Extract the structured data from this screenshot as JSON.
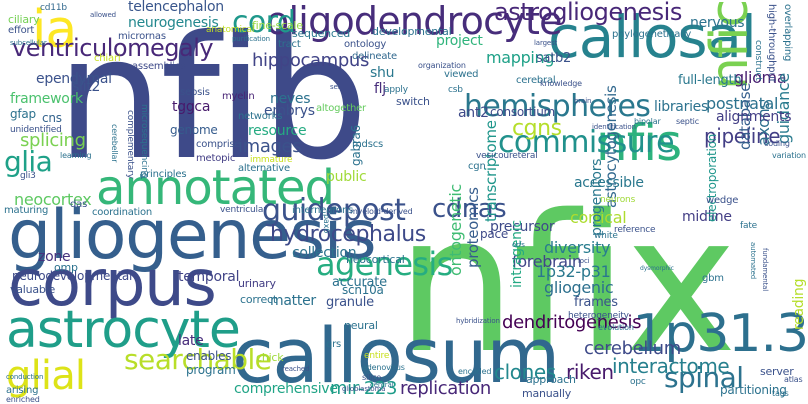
{
  "words": [
    {
      "text": "nfix",
      "color": "#5ec962"
    },
    {
      "text": "nfib",
      "color": "#3e4a89"
    },
    {
      "text": "callosum",
      "color": "#31688e"
    },
    {
      "text": "gliogenesis",
      "color": "#355f8d"
    },
    {
      "text": "corpus",
      "color": "#3e4a89"
    },
    {
      "text": "callosal",
      "color": "#26828e"
    },
    {
      "text": "nfic",
      "color": "#7ad151"
    },
    {
      "text": "1p31.3",
      "color": "#2d708e"
    },
    {
      "text": "astrocyte",
      "color": "#1f9e89"
    },
    {
      "text": "annotated",
      "color": "#35b779"
    },
    {
      "text": "ia",
      "color": "#fde725"
    },
    {
      "text": "nfis",
      "color": "#2db27d"
    },
    {
      "text": "oligodendrocyte",
      "color": "#472d7b"
    },
    {
      "text": "glial",
      "color": "#dde318"
    },
    {
      "text": "hemispheres",
      "color": "#2a788e"
    },
    {
      "text": "astrogliogenesis",
      "color": "#482878"
    },
    {
      "text": "commissure",
      "color": "#21918c"
    },
    {
      "text": "guidepost",
      "color": "#3b528b"
    },
    {
      "text": "cord",
      "color": "#1f988b"
    },
    {
      "text": "agenesis",
      "color": "#26ad81"
    },
    {
      "text": "hydrocephalus",
      "color": "#3e4a89"
    },
    {
      "text": "searchable",
      "color": "#b8de29"
    },
    {
      "text": "spinal",
      "color": "#2c728e"
    },
    {
      "text": "cdnas",
      "color": "#3b528b"
    },
    {
      "text": "glia",
      "color": "#1fa188"
    },
    {
      "text": "ventriculomegaly",
      "color": "#482878"
    },
    {
      "text": "cgns",
      "color": "#b5de2b"
    },
    {
      "text": "dendritogenesis",
      "color": "#440154"
    },
    {
      "text": "hippocampus",
      "color": "#414487"
    },
    {
      "text": "riken",
      "color": "#481a6c"
    },
    {
      "text": "interactome",
      "color": "#27808e"
    },
    {
      "text": "cerebellum",
      "color": "#3e4a89"
    },
    {
      "text": "clones",
      "color": "#23888e"
    },
    {
      "text": "pipeline",
      "color": "#433e85"
    },
    {
      "text": "images",
      "color": "#3b528b"
    },
    {
      "text": "splicing",
      "color": "#7ad151"
    },
    {
      "text": "neocortex",
      "color": "#5ec962"
    },
    {
      "text": "forebrain",
      "color": "#404688"
    },
    {
      "text": "1p32-p31",
      "color": "#2a788e"
    },
    {
      "text": "diversity",
      "color": "#287d8e"
    },
    {
      "text": "gliogenic",
      "color": "#2d708e"
    },
    {
      "text": "mapping",
      "color": "#1fa188"
    },
    {
      "text": "glioma",
      "color": "#481f70"
    },
    {
      "text": "postnatal",
      "color": "#2c728e"
    },
    {
      "text": "astrocytogenesis",
      "color": "#31688e"
    },
    {
      "text": "transcriptome",
      "color": "#1f968b"
    },
    {
      "text": "proteomics",
      "color": "#365c8d"
    },
    {
      "text": "ontogenetic",
      "color": "#3fbc73"
    },
    {
      "text": "guidance",
      "color": "#297b8e"
    },
    {
      "text": "axons",
      "color": "#2e6f8e"
    },
    {
      "text": "database",
      "color": "#355f8d"
    },
    {
      "text": "cortical",
      "color": "#addc30"
    },
    {
      "text": "progenitors",
      "color": "#2a788e"
    },
    {
      "text": "replication",
      "color": "#482878"
    },
    {
      "text": "comprehensive",
      "color": "#20a486"
    },
    {
      "text": "mir-223",
      "color": "#1e9c89"
    },
    {
      "text": "telencephalon",
      "color": "#39568c"
    },
    {
      "text": "neurogenesis",
      "color": "#23888e"
    },
    {
      "text": "ependymal",
      "color": "#3b528b"
    },
    {
      "text": "neves",
      "color": "#2c728e"
    },
    {
      "text": "embrys",
      "color": "#3b528b"
    },
    {
      "text": "resource",
      "color": "#25ab82"
    },
    {
      "text": "tggca",
      "color": "#481a6c"
    },
    {
      "text": "genome",
      "color": "#365c8d"
    },
    {
      "text": "framework",
      "color": "#4ac16d"
    },
    {
      "text": "gfap",
      "color": "#2c728e"
    },
    {
      "text": "cns",
      "color": "#33638d"
    },
    {
      "text": "slit2",
      "color": "#3b528b"
    },
    {
      "text": "shu",
      "color": "#2a788e"
    },
    {
      "text": "flj",
      "color": "#472d7b"
    },
    {
      "text": "project",
      "color": "#2fb47c"
    },
    {
      "text": "satb2",
      "color": "#3b528b"
    },
    {
      "text": "full-length",
      "color": "#2a788e"
    },
    {
      "text": "nervous",
      "color": "#2c728e"
    },
    {
      "text": "alignments",
      "color": "#433e85"
    },
    {
      "text": "libraries",
      "color": "#2c728e"
    },
    {
      "text": "ant2",
      "color": "#3e4a89"
    },
    {
      "text": "consortium",
      "color": "#3e4a89"
    },
    {
      "text": "accessible",
      "color": "#2a788e"
    },
    {
      "text": "precursor",
      "color": "#3e4a89"
    },
    {
      "text": "midline",
      "color": "#433e85"
    },
    {
      "text": "electroporation",
      "color": "#1f968b"
    },
    {
      "text": "scn10a",
      "color": "#2c728e"
    },
    {
      "text": "gabra6",
      "color": "#2c728e"
    },
    {
      "text": "public",
      "color": "#a0da39"
    },
    {
      "text": "pace",
      "color": "#3e4a89"
    },
    {
      "text": "collection",
      "color": "#2c728e"
    },
    {
      "text": "temporal",
      "color": "#414487"
    },
    {
      "text": "matter",
      "color": "#2c728e"
    },
    {
      "text": "granule",
      "color": "#3b528b"
    },
    {
      "text": "accurate",
      "color": "#2c728e"
    },
    {
      "text": "late",
      "color": "#472d7b"
    },
    {
      "text": "enables",
      "color": "#3b528b"
    },
    {
      "text": "program",
      "color": "#2c728e"
    },
    {
      "text": "zone",
      "color": "#46327e"
    },
    {
      "text": "neurodevelopmental",
      "color": "#3e4a89"
    },
    {
      "text": "valuable",
      "color": "#3b528b"
    },
    {
      "text": "neocortical",
      "color": "#2c728e"
    },
    {
      "text": "urinary",
      "color": "#433e85"
    },
    {
      "text": "correct",
      "color": "#2c728e"
    },
    {
      "text": "intragenic",
      "color": "#23a983"
    },
    {
      "text": "frames",
      "color": "#3b528b"
    },
    {
      "text": "reading",
      "color": "#b5de2b"
    },
    {
      "text": "partitioning",
      "color": "#2c728e"
    },
    {
      "text": "manually",
      "color": "#3b528b"
    },
    {
      "text": "approach",
      "color": "#2c728e"
    },
    {
      "text": "chick",
      "color": "#9fda3a"
    },
    {
      "text": "neural",
      "color": "#2c728e"
    },
    {
      "text": "omp",
      "color": "#2c728e"
    },
    {
      "text": "ciliary",
      "color": "#75d054"
    },
    {
      "text": "cd11b",
      "color": "#31688e"
    },
    {
      "text": "effort",
      "color": "#3b528b"
    },
    {
      "text": "developmental",
      "color": "#2c728e"
    },
    {
      "text": "sequenced",
      "color": "#2a788e"
    },
    {
      "text": "ontology",
      "color": "#3b528b"
    },
    {
      "text": "delineate",
      "color": "#31688e"
    },
    {
      "text": "tract",
      "color": "#2c728e"
    },
    {
      "text": "micrornas",
      "color": "#3b528b"
    },
    {
      "text": "anatomical",
      "color": "#c2df23"
    },
    {
      "text": "fine-scale",
      "color": "#95d840"
    },
    {
      "text": "phylogenetically",
      "color": "#2c728e"
    },
    {
      "text": "overlapping",
      "color": "#2c728e"
    },
    {
      "text": "high-throughput",
      "color": "#3b528b"
    },
    {
      "text": "construct",
      "color": "#2c728e"
    },
    {
      "text": "assemblies",
      "color": "#3e4a89"
    },
    {
      "text": "chiari",
      "color": "#c8e020"
    },
    {
      "text": "myelin",
      "color": "#482475"
    },
    {
      "text": "sepsis",
      "color": "#3b528b"
    },
    {
      "text": "networks",
      "color": "#2c728e"
    },
    {
      "text": "altogether",
      "color": "#65cb5e"
    },
    {
      "text": "apply",
      "color": "#2c728e"
    },
    {
      "text": "switch",
      "color": "#3b528b"
    },
    {
      "text": "csb",
      "color": "#2c728e"
    },
    {
      "text": "organization",
      "color": "#3b528b"
    },
    {
      "text": "viewed",
      "color": "#2c728e"
    },
    {
      "text": "cerebral",
      "color": "#2c728e"
    },
    {
      "text": "knowledge",
      "color": "#3b528b"
    },
    {
      "text": "mdscs",
      "color": "#2c728e"
    },
    {
      "text": "metopic",
      "color": "#433e85"
    },
    {
      "text": "principles",
      "color": "#2c728e"
    },
    {
      "text": "comprise",
      "color": "#3b528b"
    },
    {
      "text": "alternative",
      "color": "#2c728e"
    },
    {
      "text": "immature",
      "color": "#c8e020"
    },
    {
      "text": "microsequencing",
      "color": "#2c728e"
    },
    {
      "text": "complementary",
      "color": "#3b528b"
    },
    {
      "text": "cerebellar",
      "color": "#2c728e"
    },
    {
      "text": "unidentified",
      "color": "#3b528b"
    },
    {
      "text": "learning",
      "color": "#2c728e"
    },
    {
      "text": "gli3",
      "color": "#3b528b"
    },
    {
      "text": "maturing",
      "color": "#2c728e"
    },
    {
      "text": "das",
      "color": "#3b528b"
    },
    {
      "text": "coordination",
      "color": "#2c728e"
    },
    {
      "text": "ventricular",
      "color": "#3b528b"
    },
    {
      "text": "interneurons",
      "color": "#2c728e"
    },
    {
      "text": "myeloid-derived",
      "color": "#3b528b"
    },
    {
      "text": "arising",
      "color": "#2c728e"
    },
    {
      "text": "enriched",
      "color": "#3b528b"
    },
    {
      "text": "conduction",
      "color": "#2c728e"
    },
    {
      "text": "glioblastoma",
      "color": "#3b528b"
    },
    {
      "text": "entire",
      "color": "#c8e020"
    },
    {
      "text": "adenovirus",
      "color": "#2c728e"
    },
    {
      "text": "silico",
      "color": "#3b528b"
    },
    {
      "text": "encoded",
      "color": "#2c728e"
    },
    {
      "text": "hybridization",
      "color": "#3b528b"
    },
    {
      "text": "cgn",
      "color": "#2c728e"
    },
    {
      "text": "vesicoureteral",
      "color": "#3b528b"
    },
    {
      "text": "qrs",
      "color": "#2c728e"
    },
    {
      "text": "wedge",
      "color": "#3b528b"
    },
    {
      "text": "gbm",
      "color": "#2c728e"
    },
    {
      "text": "server",
      "color": "#3b528b"
    },
    {
      "text": "evolution",
      "color": "#2c728e"
    },
    {
      "text": "heterogeneity",
      "color": "#3b528b"
    },
    {
      "text": "opc",
      "color": "#2c728e"
    },
    {
      "text": "atlas",
      "color": "#3b528b"
    },
    {
      "text": "tags",
      "color": "#2c728e"
    },
    {
      "text": "neurons",
      "color": "#a0da39"
    },
    {
      "text": "white",
      "color": "#2c728e"
    },
    {
      "text": "reference",
      "color": "#3b528b"
    },
    {
      "text": "fate",
      "color": "#2c728e"
    },
    {
      "text": "coding",
      "color": "#3b528b"
    },
    {
      "text": "variation",
      "color": "#2c728e"
    },
    {
      "text": "septic",
      "color": "#3b528b"
    },
    {
      "text": "bipolar",
      "color": "#2c728e"
    },
    {
      "text": "identification",
      "color": "#3b528b"
    },
    {
      "text": "purification",
      "color": "#2c728e"
    },
    {
      "text": "allowed",
      "color": "#3b528b"
    },
    {
      "text": "subcellular",
      "color": "#2c728e"
    },
    {
      "text": "largest",
      "color": "#3b528b"
    },
    {
      "text": "automated",
      "color": "#2c728e"
    },
    {
      "text": "fundamental",
      "color": "#3b528b"
    },
    {
      "text": "dysmorphic",
      "color": "#2c728e"
    },
    {
      "text": "loci",
      "color": "#3b528b"
    },
    {
      "text": "orfs",
      "color": "#2c728e"
    },
    {
      "text": "brain",
      "color": "#3b528b"
    },
    {
      "text": "central",
      "color": "#2c728e"
    },
    {
      "text": "reached",
      "color": "#3b528b"
    },
    {
      "text": "pax6",
      "color": "#2c728e"
    },
    {
      "text": "set",
      "color": "#3b528b"
    }
  ]
}
